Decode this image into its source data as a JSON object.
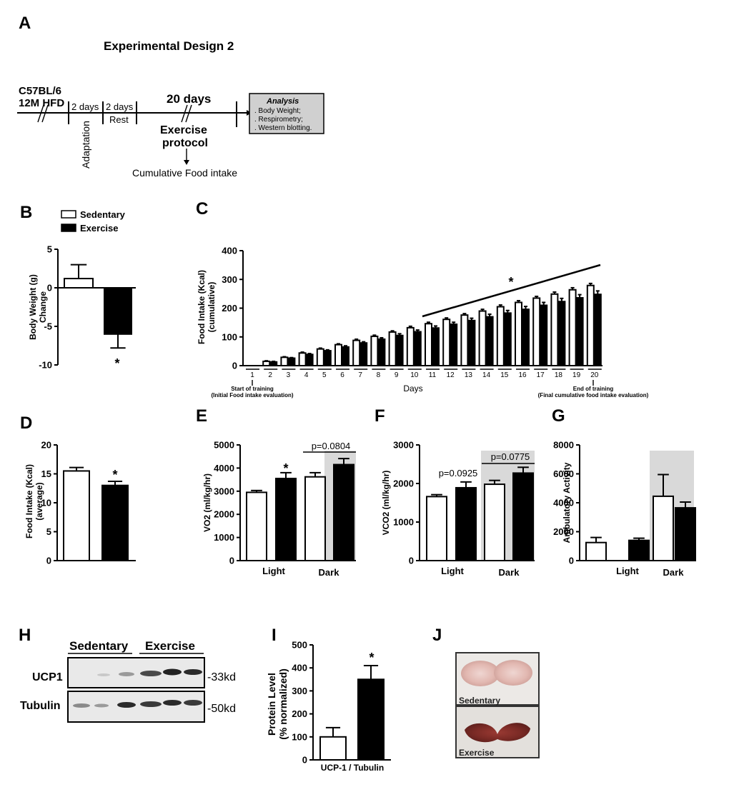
{
  "figure": {
    "panel_labels": [
      "A",
      "B",
      "C",
      "D",
      "E",
      "F",
      "G",
      "H",
      "I",
      "J"
    ]
  },
  "design": {
    "title": "Experimental Design 2",
    "strain": "C57BL/6",
    "diet": "12M HFD",
    "adapt_days": "2 days",
    "adapt_label": "Adaptation",
    "rest_days": "2 days",
    "rest_label": "Rest",
    "protocol_days": "20 days",
    "protocol_line1": "Exercise",
    "protocol_line2": "protocol",
    "food_label": "Cumulative Food intake",
    "analysis_title": "Analysis",
    "analysis_items": [
      ". Body Weight;",
      ". Respirometry;",
      ". Western blotting."
    ]
  },
  "legend": {
    "sedentary": "Sedentary",
    "exercise": "Exercise"
  },
  "colors": {
    "exercise": "#000000",
    "sedentary": "#ffffff",
    "dark_phase": "#d9d9d9",
    "box": "#d0d0d0"
  },
  "chart_data": [
    {
      "id": "B",
      "type": "bar",
      "ylabel": "Body Weight (g) Change",
      "ylim": [
        -10,
        5
      ],
      "yticks": [
        5,
        0,
        -5,
        -10
      ],
      "ytick_labels": [
        "5",
        "0",
        "-5",
        "-10"
      ],
      "series": [
        {
          "name": "Sedentary",
          "values": [
            1.2
          ],
          "errors": [
            1.8
          ]
        },
        {
          "name": "Exercise",
          "values": [
            -6.0
          ],
          "errors": [
            1.8
          ]
        }
      ],
      "significance": "*"
    },
    {
      "id": "C",
      "type": "bar",
      "ylabel": "Food Intake (Kcal) (cumulative)",
      "xlabel": "Days",
      "ylim": [
        0,
        400
      ],
      "yticks": [
        0,
        100,
        200,
        300,
        400
      ],
      "categories": [
        "1",
        "2",
        "3",
        "4",
        "5",
        "6",
        "7",
        "8",
        "9",
        "10",
        "11",
        "12",
        "13",
        "14",
        "15",
        "16",
        "17",
        "18",
        "19",
        "20"
      ],
      "series": [
        {
          "name": "Sedentary",
          "values": [
            0,
            15,
            29,
            44,
            58,
            73,
            88,
            102,
            117,
            132,
            146,
            161,
            176,
            190,
            205,
            220,
            235,
            249,
            264,
            279
          ],
          "errors": [
            0,
            2,
            2,
            3,
            3,
            3,
            4,
            4,
            4,
            5,
            5,
            5,
            5,
            6,
            6,
            6,
            6,
            7,
            7,
            7
          ]
        },
        {
          "name": "Exercise",
          "values": [
            0,
            13,
            26,
            39,
            52,
            65,
            79,
            92,
            105,
            118,
            131,
            144,
            157,
            170,
            183,
            196,
            210,
            223,
            236,
            248
          ],
          "errors": [
            0,
            2,
            2,
            3,
            3,
            4,
            4,
            5,
            6,
            6,
            7,
            7,
            8,
            9,
            9,
            10,
            10,
            11,
            11,
            12
          ]
        }
      ],
      "significance": "*",
      "annotations": {
        "start_title": "Start of training",
        "start_sub": "(Initial Food intake evaluation)",
        "end_title": "End of training",
        "end_sub": "(Final cumulative food intake evaluation)"
      }
    },
    {
      "id": "D",
      "type": "bar",
      "ylabel": "Food Intake (Kcal) (average)",
      "ylim": [
        0,
        20
      ],
      "yticks": [
        0,
        5,
        10,
        15,
        20
      ],
      "series": [
        {
          "name": "Sedentary",
          "values": [
            15.5
          ],
          "errors": [
            0.6
          ]
        },
        {
          "name": "Exercise",
          "values": [
            13.0
          ],
          "errors": [
            0.7
          ]
        }
      ],
      "significance": "*"
    },
    {
      "id": "E",
      "type": "bar",
      "ylabel": "VO2 (ml/kg/hr)",
      "ylim": [
        0,
        5000
      ],
      "yticks": [
        0,
        1000,
        2000,
        3000,
        4000,
        5000
      ],
      "categories": [
        "Light",
        "Dark"
      ],
      "series": [
        {
          "name": "Sedentary",
          "values": [
            2950,
            3620
          ],
          "errors": [
            80,
            180
          ]
        },
        {
          "name": "Exercise",
          "values": [
            3550,
            4150
          ],
          "errors": [
            250,
            260
          ]
        }
      ],
      "annotations": {
        "light": "*",
        "dark": "p=0.0804"
      }
    },
    {
      "id": "F",
      "type": "bar",
      "ylabel": "VCO2 (ml/kg/hr)",
      "ylim": [
        0,
        3000
      ],
      "yticks": [
        0,
        1000,
        2000,
        3000
      ],
      "categories": [
        "Light",
        "Dark"
      ],
      "series": [
        {
          "name": "Sedentary",
          "values": [
            1660,
            1980
          ],
          "errors": [
            50,
            100
          ]
        },
        {
          "name": "Exercise",
          "values": [
            1890,
            2270
          ],
          "errors": [
            150,
            150
          ]
        }
      ],
      "annotations": {
        "light": "p=0.0925",
        "dark": "p=0.0775"
      }
    },
    {
      "id": "G",
      "type": "bar",
      "ylabel": "Ambulatory Activity",
      "ylim": [
        0,
        8000
      ],
      "yticks": [
        0,
        2000,
        4000,
        6000,
        8000
      ],
      "categories": [
        "Light",
        "Dark"
      ],
      "series": [
        {
          "name": "Sedentary",
          "values": [
            1250,
            4450
          ],
          "errors": [
            350,
            1500
          ]
        },
        {
          "name": "Exercise",
          "values": [
            1400,
            3650
          ],
          "errors": [
            150,
            400
          ]
        }
      ]
    },
    {
      "id": "I",
      "type": "bar",
      "ylabel": "Protein Level (% normalized)",
      "xlabel": "UCP-1 / Tubulin",
      "ylim": [
        0,
        500
      ],
      "yticks": [
        0,
        100,
        200,
        300,
        400,
        500
      ],
      "series": [
        {
          "name": "Sedentary",
          "values": [
            100
          ],
          "errors": [
            40
          ]
        },
        {
          "name": "Exercise",
          "values": [
            350
          ],
          "errors": [
            60
          ]
        }
      ],
      "significance": "*"
    }
  ],
  "blot": {
    "group1": "Sedentary",
    "group2": "Exercise",
    "row1": "UCP1",
    "row2": "Tubulin",
    "size1": "-33kd",
    "size2": "-50kd"
  },
  "photos": {
    "top": "Sedentary",
    "bottom": "Exercise"
  }
}
